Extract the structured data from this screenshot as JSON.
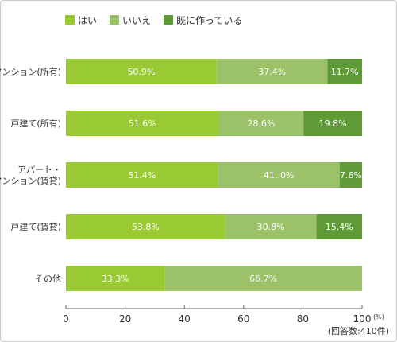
{
  "chart_data": {
    "type": "bar",
    "stacked": true,
    "orientation": "horizontal",
    "categories": [
      "マンション(所有)",
      "戸建て(所有)",
      "アパート・\nマンション(賃貸)",
      "戸建て(賃貸)",
      "その他"
    ],
    "series": [
      {
        "name": "はい",
        "color": "#99c933",
        "values": [
          50.9,
          51.6,
          51.4,
          53.8,
          33.3
        ]
      },
      {
        "name": "いいえ",
        "color": "#9bc268",
        "values": [
          37.4,
          28.6,
          41.0,
          30.8,
          66.7
        ]
      },
      {
        "name": "既に作っている",
        "color": "#5e9a35",
        "values": [
          11.7,
          19.8,
          7.6,
          15.4,
          null
        ]
      }
    ],
    "data_labels": [
      [
        "50.9%",
        "37.4%",
        "11.7%"
      ],
      [
        "51.6%",
        "28.6%",
        "19.8%"
      ],
      [
        "51.4%",
        "41..0%",
        "7.6%"
      ],
      [
        "53.8%",
        "30.8%",
        "15.4%"
      ],
      [
        "33.3%",
        "66.7%",
        ""
      ]
    ],
    "x_ticks": [
      0,
      20,
      40,
      60,
      80,
      100
    ],
    "xlim": [
      0,
      100
    ],
    "x_unit": "(%)",
    "footnote": "(回答数:410件)",
    "legend_position": "top-left"
  }
}
